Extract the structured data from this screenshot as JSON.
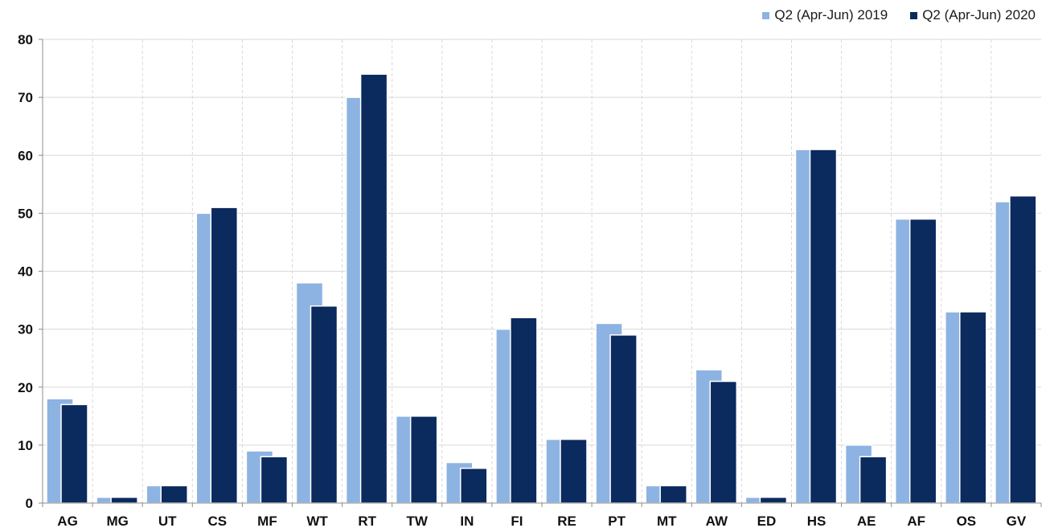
{
  "chart_data": {
    "type": "bar",
    "title": "",
    "xlabel": "",
    "ylabel": "",
    "categories": [
      "AG",
      "MG",
      "UT",
      "CS",
      "MF",
      "WT",
      "RT",
      "TW",
      "IN",
      "FI",
      "RE",
      "PT",
      "MT",
      "AW",
      "ED",
      "HS",
      "AE",
      "AF",
      "OS",
      "GV"
    ],
    "series": [
      {
        "name": "Q2 (Apr-Jun) 2019",
        "color": "#8db3e2",
        "values": [
          18,
          1,
          3,
          50,
          9,
          38,
          70,
          15,
          7,
          30,
          11,
          31,
          3,
          23,
          1,
          61,
          10,
          49,
          33,
          52
        ]
      },
      {
        "name": "Q2 (Apr-Jun) 2020",
        "color": "#0b2a5e",
        "values": [
          17,
          1,
          3,
          51,
          8,
          34,
          74,
          15,
          6,
          32,
          11,
          29,
          3,
          21,
          1,
          61,
          8,
          49,
          33,
          53
        ]
      }
    ],
    "ylim": [
      0,
      80
    ],
    "yticks": [
      0,
      10,
      20,
      30,
      40,
      50,
      60,
      70,
      80
    ],
    "grid": true,
    "legend_position": "top-right"
  }
}
